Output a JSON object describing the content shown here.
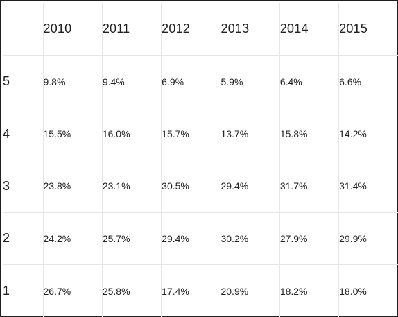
{
  "chart_data": {
    "type": "table",
    "columns": [
      "2010",
      "2011",
      "2012",
      "2013",
      "2014",
      "2015"
    ],
    "rows": [
      {
        "label": "5",
        "values": [
          "9.8%",
          "9.4%",
          "6.9%",
          "5.9%",
          "6.4%",
          "6.6%"
        ]
      },
      {
        "label": "4",
        "values": [
          "15.5%",
          "16.0%",
          "15.7%",
          "13.7%",
          "15.8%",
          "14.2%"
        ]
      },
      {
        "label": "3",
        "values": [
          "23.8%",
          "23.1%",
          "30.5%",
          "29.4%",
          "31.7%",
          "31.4%"
        ]
      },
      {
        "label": "2",
        "values": [
          "24.2%",
          "25.7%",
          "29.4%",
          "30.2%",
          "27.9%",
          "29.9%"
        ]
      },
      {
        "label": "1",
        "values": [
          "26.7%",
          "25.8%",
          "17.4%",
          "20.9%",
          "18.2%",
          "18.0%"
        ]
      }
    ]
  },
  "colors": {
    "border": "#1f1f1f",
    "gridline": "#e6e6e6",
    "text": "#222222",
    "background": "#ffffff"
  }
}
